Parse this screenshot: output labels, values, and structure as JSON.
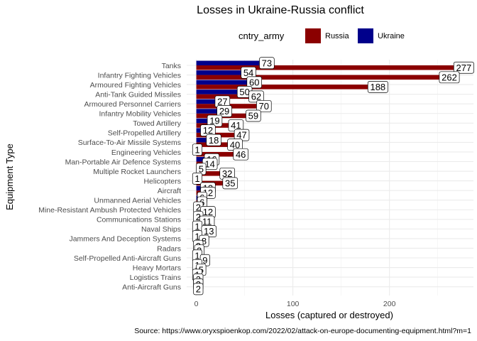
{
  "chart_data": {
    "type": "bar",
    "orientation": "horizontal",
    "title": "Losses in Ukraine-Russia conflict",
    "xlabel": "Losses (captured or destroyed)",
    "ylabel": "Equipment Type",
    "caption": "Source: https://www.oryxspioenkop.com/2022/02/attack-on-europe-documenting-equipment.html?m=1",
    "legend_title": "cntry_army",
    "legend_position": "top",
    "xlim": [
      -10,
      287
    ],
    "xticks": [
      0,
      100,
      200
    ],
    "grid": true,
    "categories": [
      "Tanks",
      "Infantry Fighting Vehicles",
      "Armoured Fighting Vehicles",
      "Anti-Tank Guided Missiles",
      "Armoured Personnel Carriers",
      "Infantry Mobility Vehicles",
      "Towed Artillery",
      "Self-Propelled Artillery",
      "Surface-To-Air Missile Systems",
      "Engineering Vehicles",
      "Man-Portable Air Defence Systems",
      "Multiple Rocket Launchers",
      "Helicopters",
      "Aircraft",
      "Unmanned Aerial Vehicles",
      "Mine-Resistant Ambush Protected Vehicles",
      "Communications Stations",
      "Naval Ships",
      "Jammers And Deception Systems",
      "Radars",
      "Self-Propelled Anti-Aircraft Guns",
      "Heavy Mortars",
      "Logistics Trains",
      "Anti-Aircraft Guns"
    ],
    "series": [
      {
        "name": "Russia",
        "color": "#8b0000",
        "values": [
          277,
          262,
          188,
          62,
          70,
          59,
          41,
          47,
          40,
          46,
          14,
          32,
          35,
          12,
          6,
          12,
          11,
          13,
          8,
          3,
          9,
          5,
          2,
          2
        ]
      },
      {
        "name": "Ukraine",
        "color": "#00008b",
        "values": [
          73,
          54,
          60,
          50,
          27,
          29,
          19,
          12,
          18,
          1,
          16,
          5,
          1,
          12,
          6,
          2,
          2,
          1,
          1,
          2,
          1,
          1,
          1,
          2
        ]
      }
    ]
  }
}
